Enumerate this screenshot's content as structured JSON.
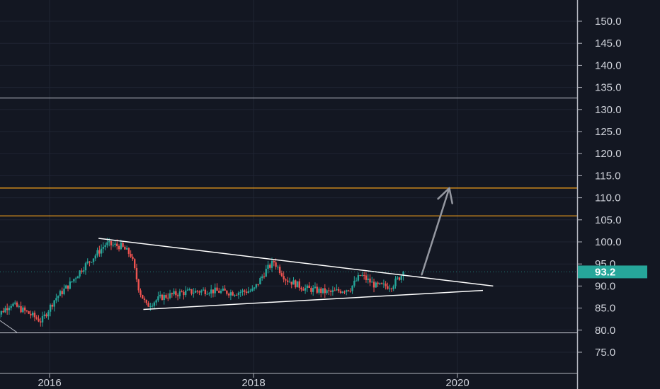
{
  "chart_data": {
    "type": "candlestick",
    "title": "",
    "xlabel": "",
    "ylabel": "",
    "ylim": [
      70,
      155
    ],
    "y_ticks": [
      {
        "value": 150,
        "label": "150.0"
      },
      {
        "value": 145,
        "label": "145.0"
      },
      {
        "value": 140,
        "label": "140.0"
      },
      {
        "value": 135,
        "label": "135.0"
      },
      {
        "value": 130,
        "label": "130.0"
      },
      {
        "value": 125,
        "label": "125.0"
      },
      {
        "value": 120,
        "label": "120.0"
      },
      {
        "value": 115,
        "label": "115.0"
      },
      {
        "value": 110,
        "label": "110.0"
      },
      {
        "value": 105,
        "label": "105.0"
      },
      {
        "value": 100,
        "label": "100.0"
      },
      {
        "value": 95,
        "label": "95.0"
      },
      {
        "value": 90,
        "label": "90.0"
      },
      {
        "value": 85,
        "label": "85.0"
      },
      {
        "value": 80,
        "label": "80.0"
      },
      {
        "value": 75,
        "label": "75.0"
      }
    ],
    "x_ticks": [
      {
        "value": 2016,
        "label": "2016"
      },
      {
        "value": 2018,
        "label": "2018"
      },
      {
        "value": 2020,
        "label": "2020"
      }
    ],
    "xlim": [
      2015.45,
      2021.15
    ],
    "last_price": {
      "value": 93.2,
      "label": "93.2"
    },
    "horizontal_levels": [
      {
        "value": 132.6,
        "color": "#b2b5be"
      },
      {
        "value": 112.2,
        "color": "#f7a21b"
      },
      {
        "value": 105.9,
        "color": "#f7a21b"
      },
      {
        "value": 79.4,
        "color": "#b2b5be"
      }
    ],
    "trendlines": [
      {
        "name": "upper",
        "from": [
          2016.48,
          100.8
        ],
        "to": [
          2020.35,
          90.0
        ],
        "color": "#ffffff"
      },
      {
        "name": "lower",
        "from": [
          2016.92,
          84.7
        ],
        "to": [
          2020.25,
          89.0
        ],
        "color": "#ffffff"
      }
    ],
    "projection_arrow": {
      "from": [
        2019.65,
        92.6
      ],
      "to": [
        2019.92,
        112.2
      ],
      "color": "#9598a1"
    },
    "candle_keypoints": [
      [
        2015.45,
        82.5
      ],
      [
        2015.62,
        86.0
      ],
      [
        2015.78,
        84.0
      ],
      [
        2015.92,
        82.0
      ],
      [
        2016.05,
        87.0
      ],
      [
        2016.2,
        90.5
      ],
      [
        2016.32,
        94.0
      ],
      [
        2016.45,
        97.0
      ],
      [
        2016.55,
        99.5
      ],
      [
        2016.7,
        99.0
      ],
      [
        2016.8,
        97.0
      ],
      [
        2016.88,
        89.0
      ],
      [
        2016.95,
        85.5
      ],
      [
        2017.1,
        87.5
      ],
      [
        2017.3,
        88.5
      ],
      [
        2017.55,
        89.0
      ],
      [
        2017.8,
        88.5
      ],
      [
        2018.0,
        89.0
      ],
      [
        2018.12,
        93.5
      ],
      [
        2018.2,
        95.5
      ],
      [
        2018.32,
        91.5
      ],
      [
        2018.5,
        89.5
      ],
      [
        2018.75,
        88.5
      ],
      [
        2018.95,
        89.5
      ],
      [
        2019.05,
        92.5
      ],
      [
        2019.2,
        90.0
      ],
      [
        2019.35,
        90.0
      ],
      [
        2019.48,
        93.2
      ]
    ],
    "colors": {
      "up": "#26a69a",
      "down": "#ef5350",
      "price_tag": "#26a69a"
    },
    "grid": true,
    "legend": "none"
  }
}
